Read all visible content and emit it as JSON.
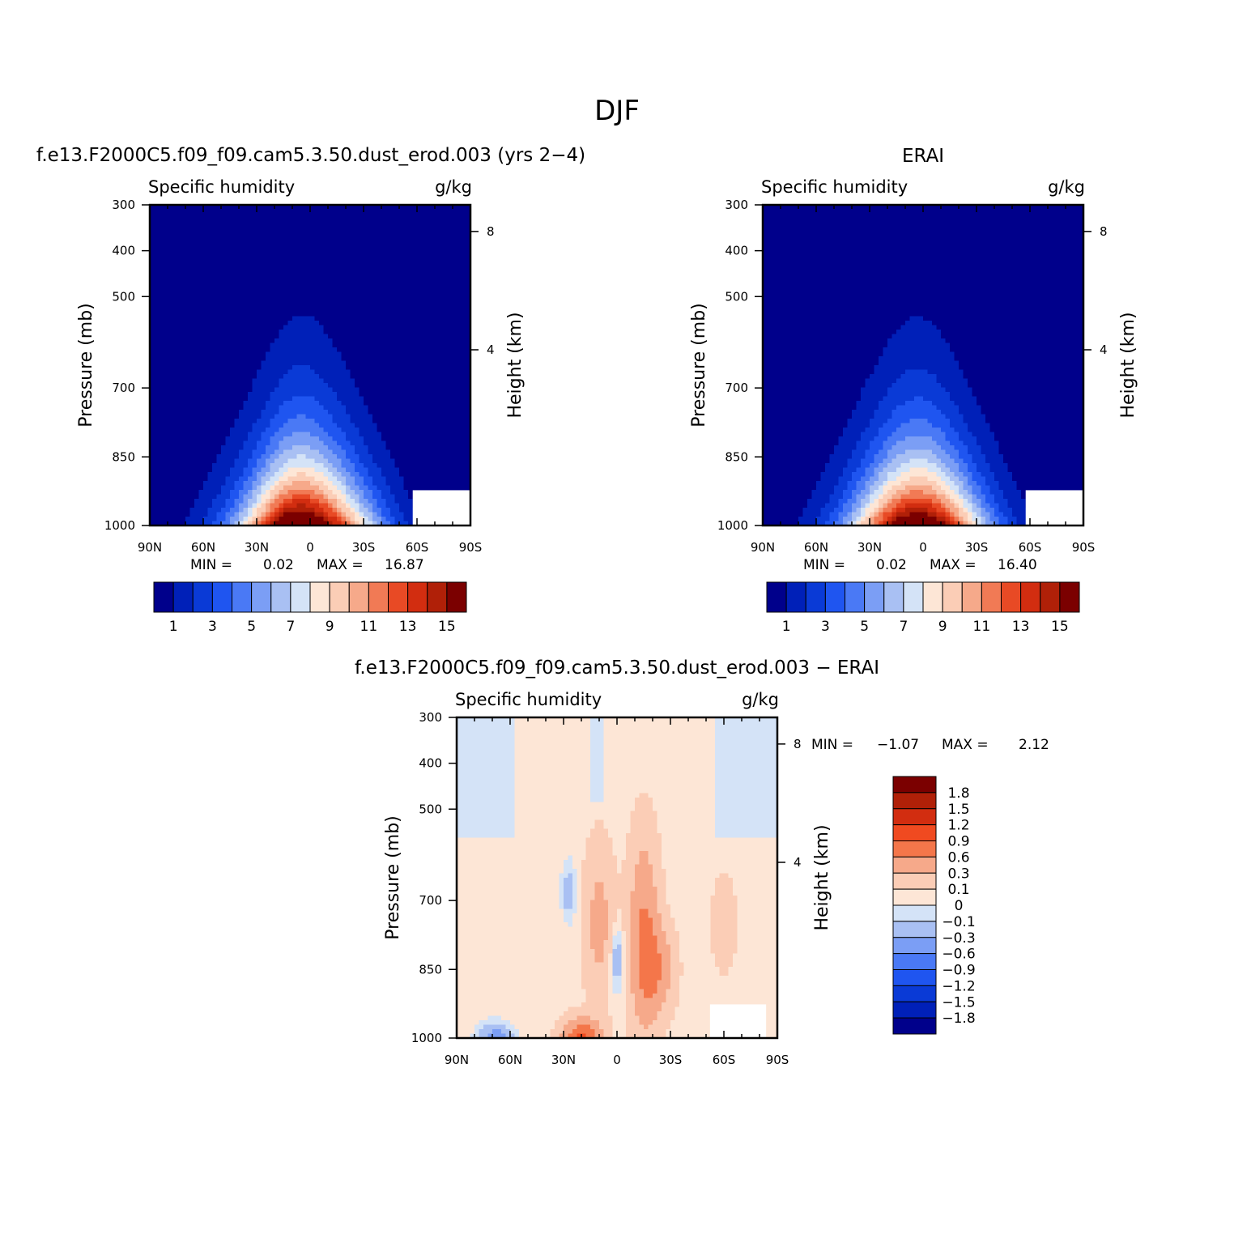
{
  "title": "DJF",
  "chart_data": [
    {
      "type": "contour",
      "title": "f.e13.F2000C5.f09_f09.cam5.3.50.dust_erod.003 (yrs 2−4)",
      "left_label": "Specific humidity",
      "right_label": "g/kg",
      "ylabel": "Pressure (mb)",
      "y2label": "Height (km)",
      "x_ticks": [
        "90N",
        "60N",
        "30N",
        "0",
        "30S",
        "60S",
        "90S"
      ],
      "y_ticks": [
        "300",
        "400",
        "500",
        "700",
        "850",
        "1000"
      ],
      "y2_ticks": [
        "8",
        "4"
      ],
      "stats": {
        "min_label": "MIN =",
        "min": "0.02",
        "max_label": "MAX =",
        "max": "16.87"
      },
      "peak_value": 16.87,
      "colorbar": {
        "labels": [
          "1",
          "3",
          "5",
          "7",
          "9",
          "11",
          "13",
          "15"
        ],
        "colors": [
          "#00008b",
          "#0020b8",
          "#0a3ad6",
          "#1f55f0",
          "#4a79f5",
          "#7b9ef5",
          "#a9c0f3",
          "#d4e3f7",
          "#fde6d6",
          "#fbcdb6",
          "#f6a98a",
          "#f17a55",
          "#e84a25",
          "#d22d10",
          "#b02008",
          "#7b0000"
        ]
      }
    },
    {
      "type": "contour",
      "title": "ERAI",
      "left_label": "Specific humidity",
      "right_label": "g/kg",
      "ylabel": "Pressure (mb)",
      "y2label": "Height (km)",
      "x_ticks": [
        "90N",
        "60N",
        "30N",
        "0",
        "30S",
        "60S",
        "90S"
      ],
      "y_ticks": [
        "300",
        "400",
        "500",
        "700",
        "850",
        "1000"
      ],
      "y2_ticks": [
        "8",
        "4"
      ],
      "stats": {
        "min_label": "MIN =",
        "min": "0.02",
        "max_label": "MAX =",
        "max": "16.40"
      },
      "peak_value": 16.4,
      "colorbar": {
        "labels": [
          "1",
          "3",
          "5",
          "7",
          "9",
          "11",
          "13",
          "15"
        ],
        "colors": [
          "#00008b",
          "#0020b8",
          "#0a3ad6",
          "#1f55f0",
          "#4a79f5",
          "#7b9ef5",
          "#a9c0f3",
          "#d4e3f7",
          "#fde6d6",
          "#fbcdb6",
          "#f6a98a",
          "#f17a55",
          "#e84a25",
          "#d22d10",
          "#b02008",
          "#7b0000"
        ]
      }
    },
    {
      "type": "contour",
      "title": "f.e13.F2000C5.f09_f09.cam5.3.50.dust_erod.003 − ERAI",
      "left_label": "Specific humidity",
      "right_label": "g/kg",
      "ylabel": "Pressure (mb)",
      "y2label": "Height (km)",
      "x_ticks": [
        "90N",
        "60N",
        "30N",
        "0",
        "30S",
        "60S",
        "90S"
      ],
      "y_ticks": [
        "300",
        "400",
        "500",
        "700",
        "850",
        "1000"
      ],
      "y2_ticks": [
        "8",
        "4"
      ],
      "stats": {
        "min_label": "MIN =",
        "min": "−1.07",
        "max_label": "MAX =",
        "max": "2.12"
      },
      "colorbar": {
        "labels": [
          "1.8",
          "1.5",
          "1.2",
          "0.9",
          "0.6",
          "0.3",
          "0.1",
          "0",
          "−0.1",
          "−0.3",
          "−0.6",
          "−0.9",
          "−1.2",
          "−1.5",
          "−1.8"
        ],
        "colors": [
          "#7b0000",
          "#b02008",
          "#d22d10",
          "#f04a20",
          "#f4764a",
          "#f6a98a",
          "#fbcdb6",
          "#fde6d6",
          "#d4e3f7",
          "#a9c0f3",
          "#7b9ef5",
          "#4a79f5",
          "#1f55f0",
          "#0a3ad6",
          "#0020b8",
          "#00008b"
        ]
      }
    }
  ]
}
